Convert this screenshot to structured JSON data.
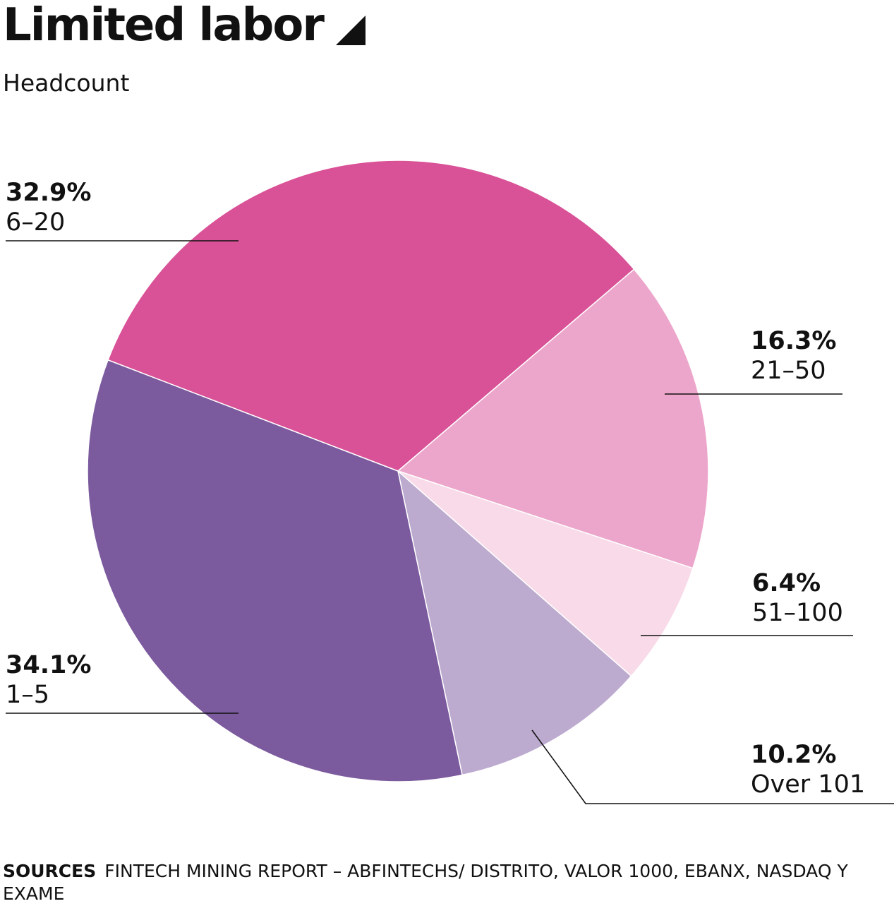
{
  "title": "Limited labor",
  "subtitle": "Headcount",
  "sources": {
    "label": "SOURCES",
    "text": "FINTECH MINING REPORT – ABFINTECHS/ DISTRITO, VALOR 1000, EBANX, NASDAQ Y EXAME"
  },
  "chart_data": {
    "type": "pie",
    "title": "Limited labor",
    "subtitle": "Headcount",
    "slices": [
      {
        "label": "21–50",
        "value": 16.3,
        "value_text": "16.3%",
        "color": "#eda6cb"
      },
      {
        "label": "51–100",
        "value": 6.4,
        "value_text": "6.4%",
        "color": "#f8dae8"
      },
      {
        "label": "Over 101",
        "value": 10.2,
        "value_text": "10.2%",
        "color": "#bdabcf"
      },
      {
        "label": "1–5",
        "value": 34.1,
        "value_text": "34.1%",
        "color": "#7b5a9e"
      },
      {
        "label": "6–20",
        "value": 32.9,
        "value_text": "32.9%",
        "color": "#d95197"
      }
    ]
  }
}
